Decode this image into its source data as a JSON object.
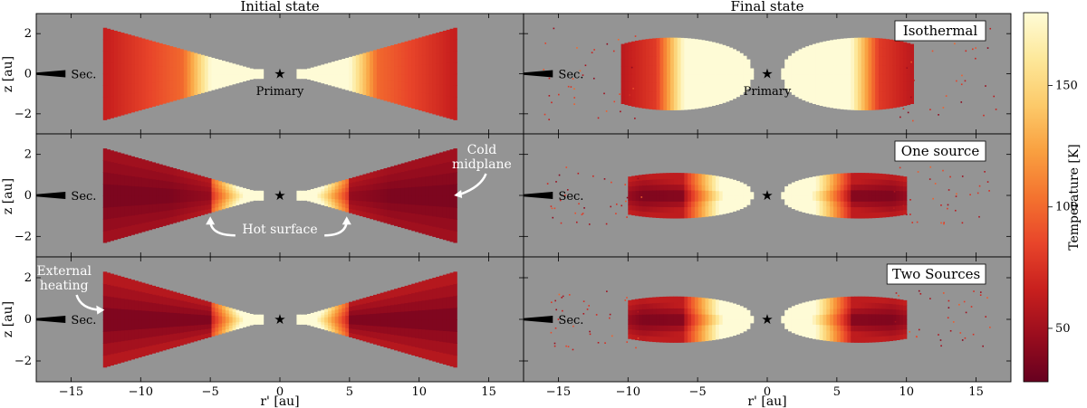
{
  "figure": {
    "column_titles": [
      "Initial state",
      "Final state"
    ],
    "xlabel": "r' [au]",
    "ylabel": "z [au]",
    "colorbar_label": "Temperature [K]"
  },
  "chart_data": {
    "type": "scatter",
    "xlim": [
      -17.5,
      17.5
    ],
    "ylim": [
      -3,
      3
    ],
    "x_ticks": [
      -15,
      -10,
      -5,
      0,
      5,
      10,
      15
    ],
    "y_ticks": [
      -2,
      0,
      2
    ],
    "colorbar": {
      "range": [
        28,
        180
      ],
      "ticks": [
        50,
        100,
        150
      ],
      "colormap": [
        "#67001f",
        "#9a0d1e",
        "#c8201e",
        "#e8452a",
        "#f4732f",
        "#f9a040",
        "#fcca6a",
        "#fde89a",
        "#fefbd6"
      ]
    },
    "panels": [
      {
        "row": 0,
        "col": 0,
        "state": "Initial state",
        "label": "",
        "disk_r_in": 1.2,
        "disk_r_out": 12.5,
        "disk_h_out": 2.3,
        "profile": "isothermal-initial",
        "annotations": [
          "Primary"
        ]
      },
      {
        "row": 0,
        "col": 1,
        "state": "Final state",
        "label": "Isothermal",
        "disk_r_in": 1.0,
        "disk_r_out": 10.5,
        "disk_h_out": 1.8,
        "profile": "isothermal-final",
        "annotations": [
          "Primary"
        ]
      },
      {
        "row": 1,
        "col": 0,
        "state": "Initial state",
        "label": "",
        "disk_r_in": 1.2,
        "disk_r_out": 12.5,
        "disk_h_out": 2.3,
        "profile": "one-source-initial",
        "annotations": [
          "Cold midplane",
          "Hot surface"
        ]
      },
      {
        "row": 1,
        "col": 1,
        "state": "Final state",
        "label": "One source",
        "disk_r_in": 1.0,
        "disk_r_out": 10.0,
        "disk_h_out": 1.1,
        "profile": "one-source-final",
        "annotations": []
      },
      {
        "row": 2,
        "col": 0,
        "state": "Initial state",
        "label": "",
        "disk_r_in": 1.2,
        "disk_r_out": 12.5,
        "disk_h_out": 2.3,
        "profile": "two-sources-initial",
        "annotations": [
          "External heating"
        ]
      },
      {
        "row": 2,
        "col": 1,
        "state": "Final state",
        "label": "Two Sources",
        "disk_r_in": 1.0,
        "disk_r_out": 10.0,
        "disk_h_out": 1.1,
        "profile": "two-sources-final",
        "annotations": []
      }
    ],
    "secondary_label": "Sec.",
    "primary_label": "Primary",
    "annotations": {
      "cold_midplane": [
        "Cold",
        "midplane"
      ],
      "hot_surface": "Hot surface",
      "external_heating": [
        "External",
        "heating"
      ]
    }
  }
}
